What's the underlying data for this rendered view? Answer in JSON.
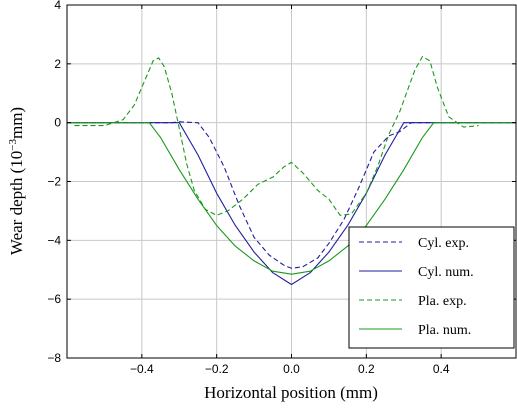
{
  "chart_data": {
    "type": "line",
    "title": "",
    "xlabel": "Horizontal position (mm)",
    "ylabel_main": "Wear depth (10",
    "ylabel_sup": "−3",
    "ylabel_tail": "mm)",
    "xlim": [
      -0.6,
      0.6
    ],
    "ylim": [
      -8,
      4
    ],
    "xticks": [
      -0.4,
      -0.2,
      0.0,
      0.2,
      0.4
    ],
    "xtick_labels": [
      "−0.4",
      "−0.2",
      "0.0",
      "0.2",
      "0.4"
    ],
    "yticks": [
      -8,
      -6,
      -4,
      -2,
      0,
      2,
      4
    ],
    "ytick_labels": [
      "−8",
      "−6",
      "−4",
      "−2",
      "0",
      "2",
      "4"
    ],
    "grid": true,
    "legend": {
      "placement": "bottom-right"
    },
    "series": [
      {
        "name": "Cyl. exp.",
        "color": "#1f1f9e",
        "dash": "dashed",
        "x": [
          -0.6,
          -0.32,
          -0.3,
          -0.25,
          -0.22,
          -0.18,
          -0.14,
          -0.1,
          -0.06,
          -0.02,
          0.0,
          0.03,
          0.07,
          0.1,
          0.14,
          0.18,
          0.22,
          0.26,
          0.29,
          0.32,
          0.35,
          0.6
        ],
        "y": [
          0.0,
          0.0,
          0.03,
          0.0,
          -0.5,
          -1.5,
          -2.8,
          -3.9,
          -4.5,
          -4.85,
          -4.95,
          -4.9,
          -4.6,
          -4.1,
          -3.3,
          -2.2,
          -1.0,
          -0.45,
          -0.3,
          0.0,
          0.0,
          0.0
        ]
      },
      {
        "name": "Cyl. num.",
        "color": "#1f1f9e",
        "dash": "solid",
        "x": [
          -0.6,
          -0.33,
          -0.3,
          -0.25,
          -0.2,
          -0.15,
          -0.1,
          -0.05,
          0.0,
          0.05,
          0.1,
          0.15,
          0.2,
          0.25,
          0.3,
          0.33,
          0.6
        ],
        "y": [
          0.0,
          0.0,
          0.0,
          -1.1,
          -2.4,
          -3.5,
          -4.4,
          -5.1,
          -5.5,
          -5.1,
          -4.4,
          -3.5,
          -2.4,
          -1.1,
          0.0,
          0.0,
          0.0
        ],
        "mirror": false
      },
      {
        "name": "Pla. exp.",
        "color": "#1a9a1a",
        "dash": "dashed",
        "x": [
          -0.58,
          -0.5,
          -0.45,
          -0.42,
          -0.39,
          -0.37,
          -0.355,
          -0.34,
          -0.32,
          -0.3,
          -0.28,
          -0.26,
          -0.23,
          -0.2,
          -0.17,
          -0.13,
          -0.09,
          -0.05,
          -0.02,
          0.0,
          0.03,
          0.07,
          0.1,
          0.13,
          0.16,
          0.2,
          0.23,
          0.26,
          0.29,
          0.31,
          0.33,
          0.35,
          0.37,
          0.39,
          0.42,
          0.46,
          0.5
        ],
        "y": [
          -0.1,
          -0.1,
          0.1,
          0.6,
          1.5,
          2.1,
          2.2,
          1.9,
          1.0,
          -0.2,
          -1.4,
          -2.3,
          -2.95,
          -3.15,
          -3.0,
          -2.6,
          -2.1,
          -1.85,
          -1.5,
          -1.35,
          -1.7,
          -2.3,
          -2.6,
          -3.15,
          -3.1,
          -2.4,
          -1.5,
          -0.4,
          0.4,
          1.1,
          1.8,
          2.25,
          2.1,
          1.2,
          0.2,
          -0.15,
          -0.1
        ]
      },
      {
        "name": "Pla. num.",
        "color": "#1a9a1a",
        "dash": "solid",
        "x": [
          -0.6,
          -0.38,
          -0.35,
          -0.3,
          -0.25,
          -0.2,
          -0.15,
          -0.1,
          -0.05,
          0.0,
          0.05,
          0.1,
          0.15,
          0.2,
          0.25,
          0.3,
          0.35,
          0.38,
          0.6
        ],
        "y": [
          0.0,
          0.0,
          -0.5,
          -1.6,
          -2.6,
          -3.5,
          -4.2,
          -4.7,
          -5.05,
          -5.15,
          -5.05,
          -4.7,
          -4.2,
          -3.5,
          -2.6,
          -1.6,
          -0.5,
          0.0,
          0.0
        ]
      }
    ]
  }
}
